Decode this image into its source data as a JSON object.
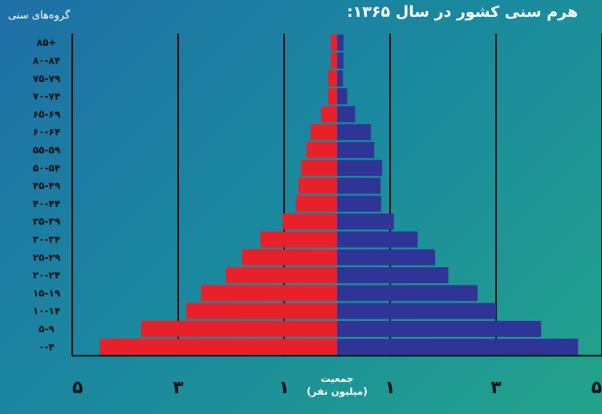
{
  "chart_data": {
    "type": "bar",
    "orientation": "horizontal-population-pyramid",
    "title": "هرم سنی کشور در سال ۱۳۶۵:",
    "ylabel": "گروه‌های سنی",
    "xlabel": "جمعیت",
    "xunit": "(میلیون نفر)",
    "categories": [
      "۸۵+",
      "۸۰-۸۴",
      "۷۵-۷۹",
      "۷۰-۷۴",
      "۶۵-۶۹",
      "۶۰-۶۴",
      "۵۵-۵۹",
      "۵۰-۵۴",
      "۴۵-۴۹",
      "۴۰-۴۴",
      "۳۵-۳۹",
      "۳۰-۳۴",
      "۲۵-۲۹",
      "۲۰-۲۴",
      "۱۵-۱۹",
      "۱۰-۱۴",
      "۵-۹",
      "۰-۴"
    ],
    "series": [
      {
        "color": "#e8202a",
        "values": [
          0.12,
          0.12,
          0.17,
          0.17,
          0.3,
          0.5,
          0.58,
          0.68,
          0.73,
          0.78,
          1.03,
          1.45,
          1.8,
          2.1,
          2.57,
          2.85,
          3.7,
          4.48
        ]
      },
      {
        "color": "#2e3596",
        "values": [
          0.12,
          0.12,
          0.11,
          0.19,
          0.34,
          0.64,
          0.7,
          0.85,
          0.82,
          0.83,
          1.07,
          1.52,
          1.85,
          2.1,
          2.65,
          3.0,
          3.85,
          4.55
        ]
      }
    ],
    "xlim": [
      -5,
      5
    ],
    "ticks": [
      {
        "value": -5,
        "label": "۵"
      },
      {
        "value": -3,
        "label": "۳"
      },
      {
        "value": -1,
        "label": "۱"
      },
      {
        "value": 1,
        "label": "۱"
      },
      {
        "value": 3,
        "label": "۳"
      },
      {
        "value": 5,
        "label": "۵"
      }
    ],
    "grid": true
  }
}
